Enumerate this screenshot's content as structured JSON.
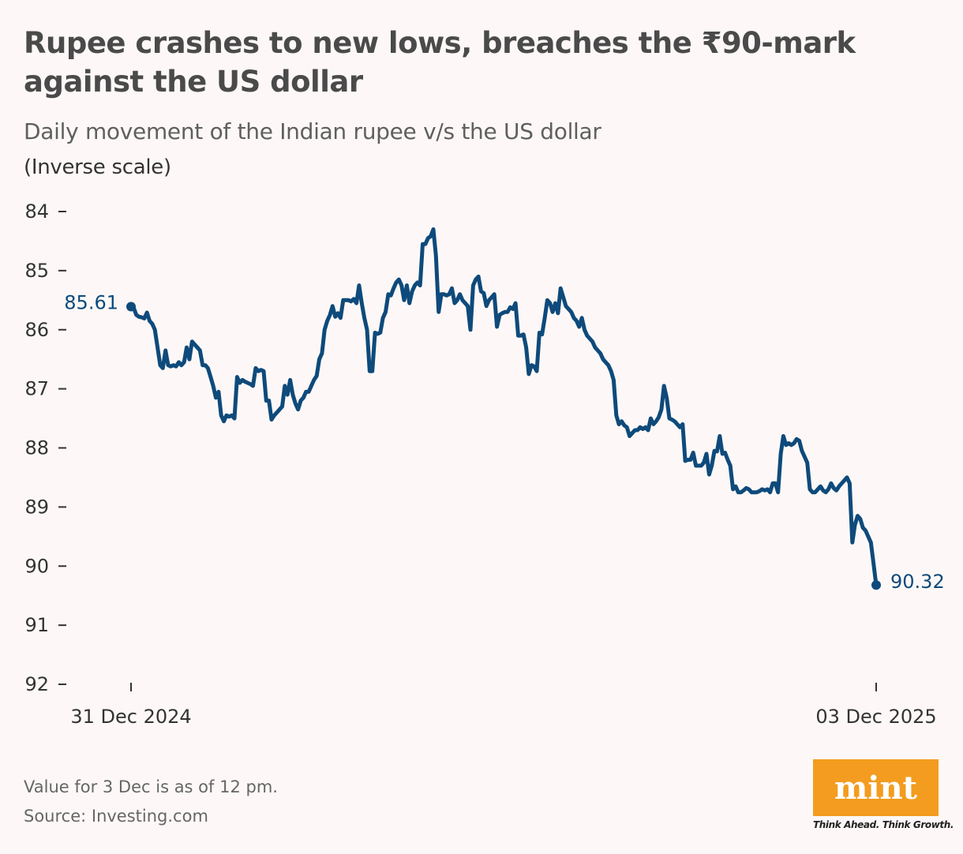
{
  "header": {
    "title": "Rupee crashes to new lows, breaches the ₹90-mark against the US dollar",
    "subtitle": "Daily movement of the Indian rupee v/s the US dollar",
    "scale_note": "(Inverse scale)"
  },
  "footer": {
    "note": "Value for 3 Dec is as of 12 pm.",
    "source": "Source: Investing.com"
  },
  "logo": {
    "text": "mint",
    "tagline": "Think Ahead. Think Growth.",
    "color": "#f39c1f"
  },
  "chart_data": {
    "type": "line",
    "title": "",
    "xlabel": "",
    "ylabel": "",
    "y_inverted": true,
    "ylim": [
      84,
      92
    ],
    "y_ticks": [
      "84",
      "85",
      "86",
      "87",
      "88",
      "89",
      "90",
      "91",
      "92"
    ],
    "x_tick_labels": [
      "31 Dec 2024",
      "03 Dec 2025"
    ],
    "grid": false,
    "line_color": "#0e4a7b",
    "start_label": "85.61",
    "end_label": "90.32",
    "series": [
      {
        "x_range": [
          "31 Dec 2024",
          "03 Dec 2025"
        ],
        "values": [
          85.61,
          85.63,
          85.75,
          85.78,
          85.79,
          85.81,
          85.71,
          85.85,
          85.9,
          86.0,
          86.3,
          86.6,
          86.65,
          86.35,
          86.6,
          86.62,
          86.6,
          86.62,
          86.55,
          86.6,
          86.55,
          86.3,
          86.5,
          86.2,
          86.25,
          86.3,
          86.35,
          86.6,
          86.6,
          86.65,
          86.8,
          86.95,
          87.15,
          87.05,
          87.45,
          87.55,
          87.45,
          87.47,
          87.45,
          87.5,
          86.8,
          86.9,
          86.85,
          86.88,
          86.9,
          86.92,
          86.95,
          86.65,
          86.7,
          86.68,
          86.7,
          87.2,
          87.2,
          87.52,
          87.45,
          87.4,
          87.35,
          87.3,
          86.95,
          87.1,
          86.85,
          87.1,
          87.25,
          87.35,
          87.2,
          87.15,
          87.05,
          87.05,
          86.95,
          86.85,
          86.78,
          86.5,
          86.4,
          86.0,
          85.85,
          85.75,
          85.6,
          85.78,
          85.72,
          85.8,
          85.5,
          85.5,
          85.5,
          85.52,
          85.48,
          85.55,
          85.25,
          85.55,
          85.8,
          86.0,
          86.7,
          86.7,
          86.05,
          86.07,
          86.05,
          85.8,
          85.7,
          85.4,
          85.42,
          85.3,
          85.2,
          85.15,
          85.25,
          85.5,
          85.25,
          85.55,
          85.35,
          85.25,
          85.2,
          85.25,
          84.55,
          84.55,
          84.45,
          84.42,
          84.3,
          84.75,
          85.7,
          85.4,
          85.4,
          85.42,
          85.4,
          85.3,
          85.55,
          85.5,
          85.4,
          85.5,
          85.55,
          85.6,
          86.0,
          85.25,
          85.15,
          85.1,
          85.35,
          85.38,
          85.6,
          85.5,
          85.45,
          85.4,
          85.95,
          85.75,
          85.72,
          85.7,
          85.7,
          85.62,
          85.65,
          85.55,
          86.1,
          86.1,
          86.08,
          86.3,
          86.75,
          86.6,
          86.62,
          86.7,
          86.05,
          86.08,
          85.8,
          85.5,
          85.55,
          85.7,
          85.55,
          85.72,
          85.3,
          85.45,
          85.6,
          85.65,
          85.7,
          85.8,
          85.85,
          85.95,
          85.8,
          86.0,
          86.1,
          86.15,
          86.2,
          86.3,
          86.35,
          86.4,
          86.5,
          86.55,
          86.6,
          86.7,
          86.85,
          87.45,
          87.6,
          87.55,
          87.62,
          87.65,
          87.8,
          87.75,
          87.7,
          87.7,
          87.65,
          87.68,
          87.65,
          87.7,
          87.5,
          87.6,
          87.55,
          87.48,
          87.35,
          86.95,
          87.15,
          87.5,
          87.52,
          87.55,
          87.6,
          87.65,
          87.6,
          88.22,
          88.2,
          88.2,
          88.08,
          88.3,
          88.3,
          88.3,
          88.25,
          88.1,
          88.45,
          88.3,
          88.05,
          88.06,
          87.8,
          88.1,
          88.08,
          88.2,
          88.3,
          88.7,
          88.65,
          88.75,
          88.75,
          88.72,
          88.68,
          88.7,
          88.75,
          88.75,
          88.75,
          88.73,
          88.7,
          88.72,
          88.7,
          88.75,
          88.6,
          88.6,
          88.75,
          88.1,
          87.8,
          87.95,
          87.92,
          87.95,
          87.92,
          87.85,
          87.88,
          88.05,
          88.15,
          88.25,
          88.7,
          88.75,
          88.75,
          88.7,
          88.65,
          88.72,
          88.75,
          88.7,
          88.6,
          88.68,
          88.72,
          88.65,
          88.6,
          88.55,
          88.5,
          88.6,
          89.6,
          89.3,
          89.15,
          89.2,
          89.35,
          89.4,
          89.5,
          89.6,
          89.95,
          90.32
        ]
      }
    ]
  }
}
